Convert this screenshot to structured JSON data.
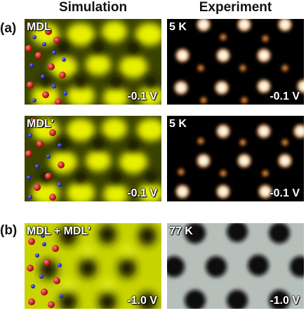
{
  "columns": {
    "left": "Simulation",
    "right": "Experiment"
  },
  "rows": [
    {
      "label": "(a)"
    },
    {
      "label": "(b)"
    }
  ],
  "panels": {
    "sim1": {
      "corner": "MDL",
      "bias": "-0.1 V"
    },
    "exp1": {
      "corner": "5 K",
      "bias": "-0.1 V"
    },
    "sim2": {
      "corner": "MDL′",
      "bias": "-0.1 V"
    },
    "exp2": {
      "corner": "5 K",
      "bias": "-0.1 V"
    },
    "sim3": {
      "corner": "MDL + MDL′",
      "bias": "-1.0 V"
    },
    "exp3": {
      "corner": "77 K",
      "bias": "-1.0 V"
    }
  },
  "colors": {
    "sim_bright": "#e8f000",
    "sim_dark": "#121400",
    "exp_bright": "#fff6e0",
    "exp_orange": "#e07a1a",
    "gray_bright": "#c9d0cd",
    "atom_red": "#d01818",
    "atom_blue": "#1c2cc8"
  }
}
